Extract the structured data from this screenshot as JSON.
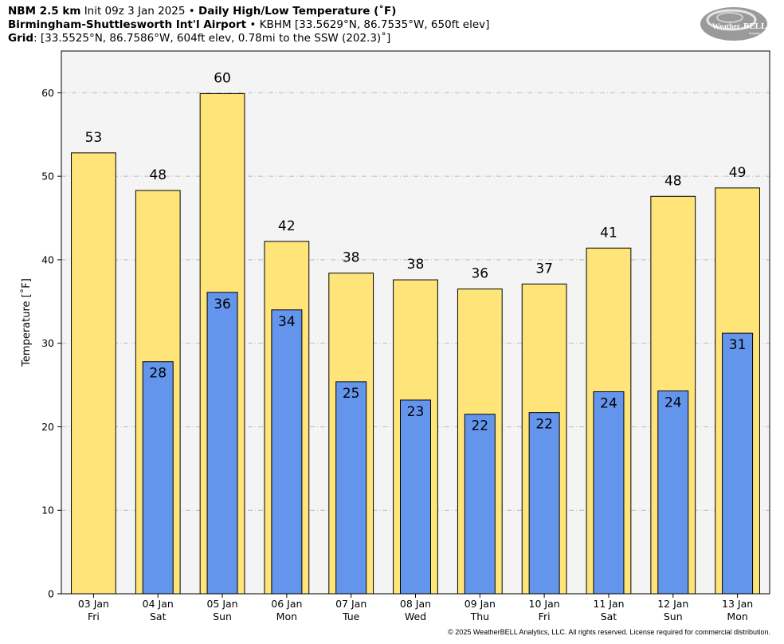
{
  "header": {
    "model": "NBM 2.5 km",
    "init": "Init 09z 3 Jan 2025",
    "sep": "•",
    "product": "Daily High/Low Temperature (˚F)",
    "station_name": "Birmingham-Shuttlesworth Int'l Airport",
    "station_info": "KBHM [33.5629°N, 86.7535°W, 650ft elev]",
    "grid_label": "Grid",
    "grid_info": ": [33.5525°N, 86.7586°W, 604ft elev, 0.78mi to the SSW (202.3)˚]"
  },
  "logo": {
    "text_a": "Weather",
    "text_b": "BELL",
    "sub": "Analytics LLC"
  },
  "copyright": "© 2025 WeatherBELL Analytics, LLC. All rights reserved. License required for commercial distribution.",
  "colors": {
    "high": "#FFE47A",
    "low": "#6495ED",
    "plot_bg": "#F4F4F4",
    "grid": "#bbbbbb"
  },
  "chart_data": {
    "type": "bar",
    "ylabel": "Temperature [˚F]",
    "ylim": [
      0,
      65
    ],
    "yticks": [
      0,
      10,
      20,
      30,
      40,
      50,
      60
    ],
    "grid": true,
    "categories": [
      {
        "date": "03 Jan",
        "day": "Fri"
      },
      {
        "date": "04 Jan",
        "day": "Sat"
      },
      {
        "date": "05 Jan",
        "day": "Sun"
      },
      {
        "date": "06 Jan",
        "day": "Mon"
      },
      {
        "date": "07 Jan",
        "day": "Tue"
      },
      {
        "date": "08 Jan",
        "day": "Wed"
      },
      {
        "date": "09 Jan",
        "day": "Thu"
      },
      {
        "date": "10 Jan",
        "day": "Fri"
      },
      {
        "date": "11 Jan",
        "day": "Sat"
      },
      {
        "date": "12 Jan",
        "day": "Sun"
      },
      {
        "date": "13 Jan",
        "day": "Mon"
      }
    ],
    "series": [
      {
        "key": "high",
        "values": [
          52.8,
          48.3,
          59.9,
          42.2,
          38.4,
          37.6,
          36.5,
          37.1,
          41.4,
          47.6,
          48.6
        ],
        "labels": [
          "53",
          "48",
          "60",
          "42",
          "38",
          "38",
          "36",
          "37",
          "41",
          "48",
          "49"
        ]
      },
      {
        "key": "low",
        "values": [
          null,
          27.8,
          36.1,
          34.0,
          25.4,
          23.2,
          21.5,
          21.7,
          24.2,
          24.3,
          31.2
        ],
        "labels": [
          "",
          "28",
          "36",
          "34",
          "25",
          "23",
          "22",
          "22",
          "24",
          "24",
          "31"
        ]
      }
    ]
  }
}
